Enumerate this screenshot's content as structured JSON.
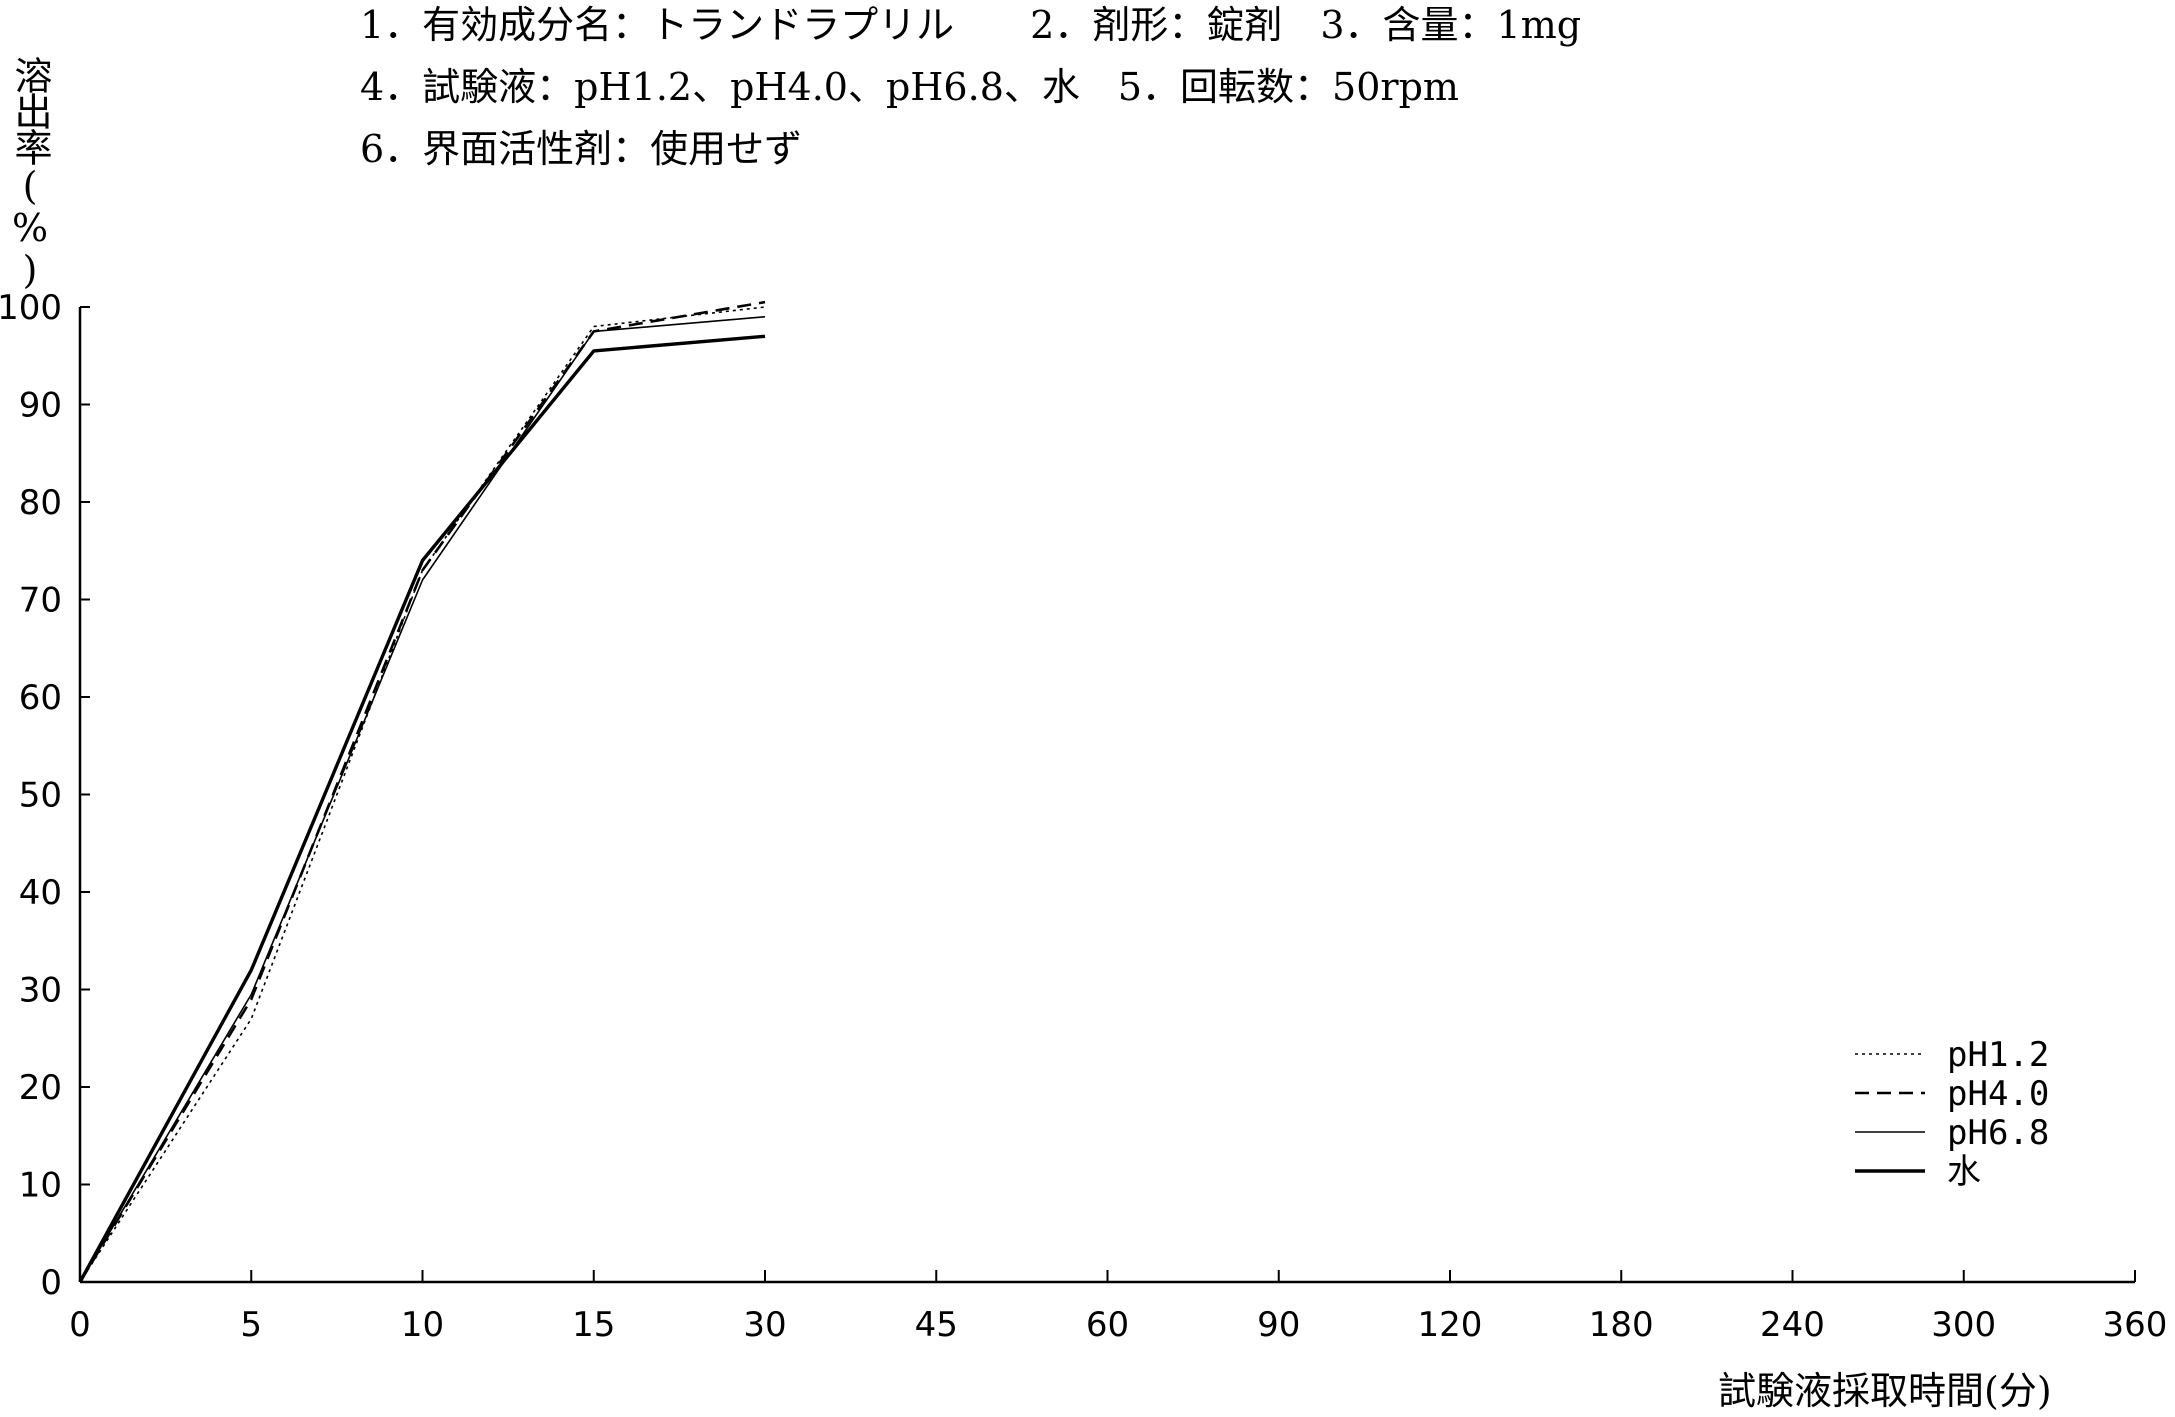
{
  "header": {
    "line1": "1．有効成分名：トランドラプリル　　2．剤形：錠剤　3．含量：1mg",
    "line2": "4．試験液：pH1.2、pH4.0、pH6.8、水　5．回転数：50rpm",
    "line3": "6．界面活性剤：使用せず"
  },
  "chart_data": {
    "type": "line",
    "ylabel": "溶出率(%)",
    "xlabel": "試験液採取時間(分)",
    "categories": [
      "0",
      "5",
      "10",
      "15",
      "30",
      "45",
      "60",
      "90",
      "120",
      "180",
      "240",
      "300",
      "360"
    ],
    "ylim": [
      0,
      100
    ],
    "yticks": [
      0,
      10,
      20,
      30,
      40,
      50,
      60,
      70,
      80,
      90,
      100
    ],
    "grid": false,
    "legend_position": "bottom-right",
    "series": [
      {
        "name": "pH1.2",
        "style": "dotted",
        "x": [
          "0",
          "5",
          "10",
          "15",
          "30"
        ],
        "values": [
          0,
          27,
          73,
          98,
          100
        ]
      },
      {
        "name": "pH4.0",
        "style": "dashed",
        "x": [
          "0",
          "5",
          "10",
          "15",
          "30"
        ],
        "values": [
          0,
          29,
          73,
          97.5,
          100.5
        ]
      },
      {
        "name": "pH6.8",
        "style": "thin",
        "x": [
          "0",
          "5",
          "10",
          "15",
          "30"
        ],
        "values": [
          0,
          29.5,
          72,
          97.5,
          99
        ]
      },
      {
        "name": "水",
        "style": "thick",
        "x": [
          "0",
          "5",
          "10",
          "15",
          "30"
        ],
        "values": [
          0,
          32,
          74,
          95.5,
          97
        ]
      }
    ]
  }
}
